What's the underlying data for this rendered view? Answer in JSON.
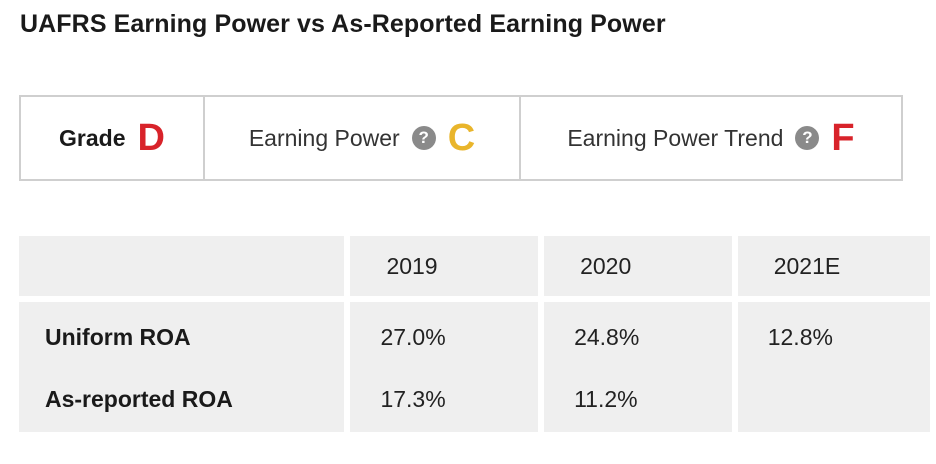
{
  "title": "UAFRS Earning Power vs As-Reported Earning Power",
  "grades": {
    "grade_label": "Grade",
    "grade_value": "D",
    "grade_color": "#d8232a",
    "earning_power_label": "Earning Power",
    "earning_power_value": "C",
    "earning_power_color": "#e9b52b",
    "trend_label": "Earning Power Trend",
    "trend_value": "F",
    "trend_color": "#d8232a",
    "help_icon_glyph": "?",
    "help_icon": "question-circle-icon"
  },
  "table": {
    "columns": [
      "",
      "2019",
      "2020",
      "2021E"
    ],
    "rows": [
      {
        "label": "Uniform ROA",
        "values": [
          "27.0%",
          "24.8%",
          "12.8%"
        ]
      },
      {
        "label": "As-reported ROA",
        "values": [
          "17.3%",
          "11.2%",
          ""
        ]
      }
    ]
  }
}
